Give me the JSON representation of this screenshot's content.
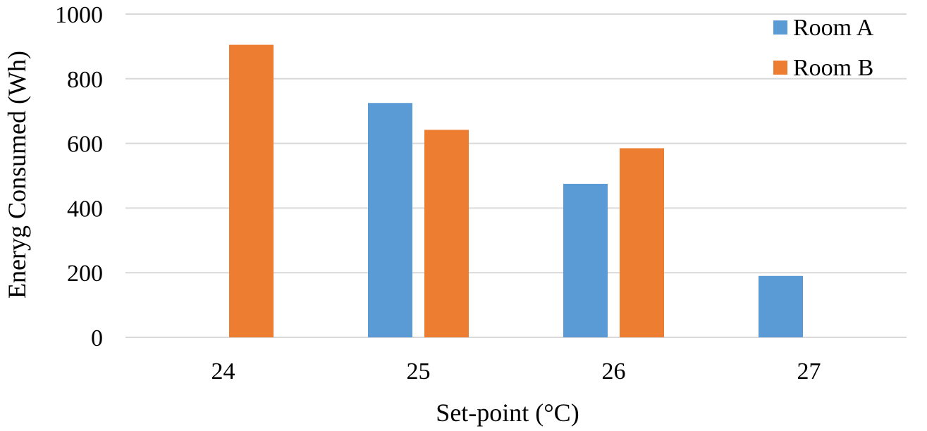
{
  "chart_data": {
    "type": "bar",
    "title": "",
    "xlabel": "Set-point (°C)",
    "ylabel": "Eneryg Consumed (Wh)",
    "categories": [
      "24",
      "25",
      "26",
      "27"
    ],
    "ylim": [
      0,
      1000
    ],
    "yticks": [
      "0",
      "200",
      "400",
      "600",
      "800",
      "1000"
    ],
    "ytick_values": [
      0,
      200,
      400,
      600,
      800,
      1000
    ],
    "grid": true,
    "legend_position": "top-right",
    "series": [
      {
        "name": "Room A",
        "color": "#5b9bd5",
        "values": [
          null,
          725,
          475,
          190
        ]
      },
      {
        "name": "Room B",
        "color": "#ed7d31",
        "values": [
          905,
          642,
          585,
          null
        ]
      }
    ]
  }
}
